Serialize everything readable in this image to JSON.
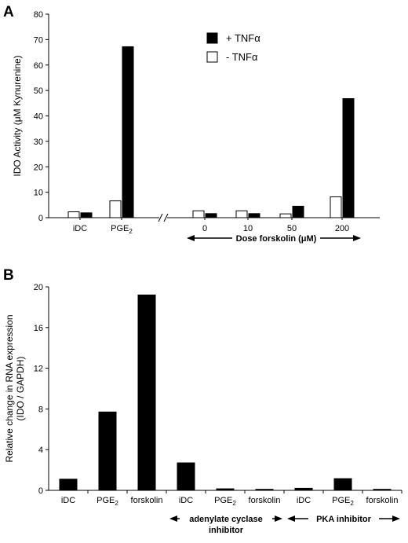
{
  "chart_data": [
    {
      "type": "bar",
      "panel": "A",
      "ylabel": "IDO Activity (μM Kynurenine)",
      "ylim": [
        0,
        80
      ],
      "yticks": [
        0,
        10,
        20,
        30,
        40,
        50,
        60,
        70,
        80
      ],
      "categories": [
        "iDC",
        "PGE",
        "0",
        "10",
        "50",
        "200"
      ],
      "category_subscripts": [
        "",
        "2",
        "",
        "",
        "",
        ""
      ],
      "axis_break_between": [
        1,
        2
      ],
      "series": [
        {
          "name": "- TNFα",
          "fill": "#ffffff",
          "values": [
            2.3,
            6.6,
            2.7,
            2.7,
            1.5,
            8.2
          ]
        },
        {
          "name": "+ TNFα",
          "fill": "#000000",
          "values": [
            1.9,
            67.2,
            1.6,
            1.6,
            4.5,
            46.8
          ]
        }
      ],
      "legend": {
        "placement": "top-right",
        "entries": [
          "+ TNFα",
          "- TNFα"
        ]
      },
      "annotations": [
        {
          "text": "Dose forskolin (μM)",
          "spans_categories": [
            2,
            5
          ]
        }
      ]
    },
    {
      "type": "bar",
      "panel": "B",
      "ylabel_lines": [
        "Relative change in RNA expression",
        "(IDO / GAPDH)"
      ],
      "ylim": [
        0,
        20
      ],
      "yticks": [
        0,
        4,
        8,
        12,
        16,
        20
      ],
      "categories": [
        "iDC",
        "PGE",
        "forskolin",
        "iDC",
        "PGE",
        "forskolin",
        "iDC",
        "PGE",
        "forskolin"
      ],
      "category_subscripts": [
        "",
        "2",
        "",
        "",
        "2",
        "",
        "",
        "2",
        ""
      ],
      "series": [
        {
          "name": "",
          "fill": "#000000",
          "values": [
            1.1,
            7.7,
            19.2,
            2.7,
            0.15,
            0.1,
            0.2,
            1.15,
            0.1
          ]
        }
      ],
      "annotations": [
        {
          "text_lines": [
            "adenylate cyclase",
            "inhibitor"
          ],
          "spans_categories": [
            3,
            5
          ]
        },
        {
          "text_lines": [
            "PKA inhibitor"
          ],
          "spans_categories": [
            6,
            8
          ]
        }
      ]
    }
  ]
}
